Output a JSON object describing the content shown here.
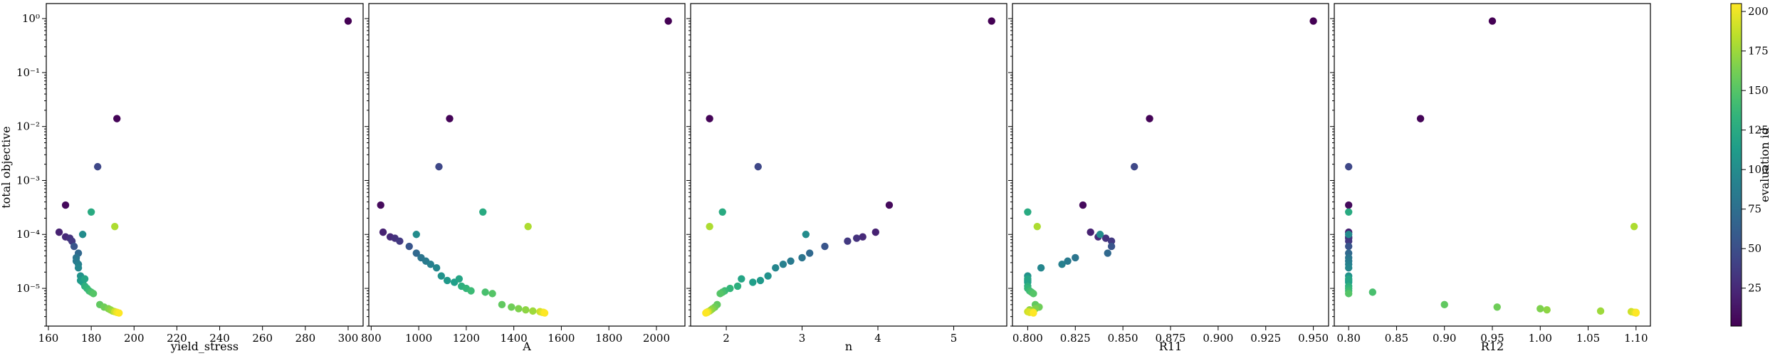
{
  "chart_data": {
    "type": "scatter",
    "shared_y": {
      "label": "total objective",
      "scale": "log",
      "ylim": [
        2e-06,
        1.9
      ],
      "ticks": [
        {
          "value": 1e-05,
          "label": "10⁻⁵"
        },
        {
          "value": 0.0001,
          "label": "10⁻⁴"
        },
        {
          "value": 0.001,
          "label": "10⁻³"
        },
        {
          "value": 0.01,
          "label": "10⁻²"
        },
        {
          "value": 0.1,
          "label": "10⁻¹"
        },
        {
          "value": 1,
          "label": "10⁰"
        }
      ]
    },
    "colorbar": {
      "label": "evaluation id",
      "colormap": "viridis",
      "range": [
        1,
        205
      ],
      "ticks": [
        25,
        50,
        75,
        100,
        125,
        150,
        175,
        200
      ]
    },
    "panels": [
      {
        "xlabel": "yield_stress",
        "xlim": [
          159,
          307
        ],
        "xticks": [
          160,
          180,
          200,
          220,
          240,
          260,
          280,
          300
        ]
      },
      {
        "xlabel": "A",
        "xlim": [
          790,
          2120
        ],
        "xticks": [
          800,
          1000,
          1200,
          1400,
          1600,
          1800,
          2000
        ]
      },
      {
        "xlabel": "n",
        "xlim": [
          1.53,
          5.7
        ],
        "xticks": [
          2,
          3,
          4,
          5
        ]
      },
      {
        "xlabel": "R11",
        "xlim": [
          0.792,
          0.958
        ],
        "xticks": [
          0.8,
          0.825,
          0.85,
          0.875,
          0.9,
          0.925,
          0.95
        ],
        "xtick_labels": [
          "0.800",
          "0.825",
          "0.850",
          "0.875",
          "0.900",
          "0.925",
          "0.950"
        ]
      },
      {
        "xlabel": "R12",
        "xlim": [
          0.785,
          1.115
        ],
        "xticks": [
          0.8,
          0.85,
          0.9,
          0.95,
          1.0,
          1.05,
          1.1
        ],
        "xtick_labels": [
          "0.80",
          "0.85",
          "0.90",
          "0.95",
          "1.00",
          "1.05",
          "1.10"
        ]
      }
    ],
    "points": [
      {
        "id": 1,
        "y": 0.9,
        "x": [
          300,
          2050,
          5.5,
          0.95,
          0.95
        ]
      },
      {
        "id": 3,
        "y": 0.014,
        "x": [
          192,
          1130,
          1.78,
          0.864,
          0.875
        ]
      },
      {
        "id": 6,
        "y": 0.00035,
        "x": [
          168,
          840,
          4.15,
          0.829,
          0.8
        ]
      },
      {
        "id": 20,
        "y": 0.00011,
        "x": [
          165,
          850,
          3.97,
          0.833,
          0.8
        ]
      },
      {
        "id": 25,
        "y": 9e-05,
        "x": [
          168,
          880,
          3.8,
          0.837,
          0.8
        ]
      },
      {
        "id": 30,
        "y": 8.5e-05,
        "x": [
          170,
          900,
          3.72,
          0.841,
          0.8
        ]
      },
      {
        "id": 35,
        "y": 7.5e-05,
        "x": [
          171,
          920,
          3.6,
          0.844,
          0.8
        ]
      },
      {
        "id": 45,
        "y": 0.0018,
        "x": [
          183,
          1085,
          2.42,
          0.856,
          0.8
        ]
      },
      {
        "id": 55,
        "y": 6e-05,
        "x": [
          172,
          960,
          3.3,
          0.844,
          0.8
        ]
      },
      {
        "id": 70,
        "y": 4.5e-05,
        "x": [
          174,
          990,
          3.1,
          0.842,
          0.8
        ]
      },
      {
        "id": 80,
        "y": 3.7e-05,
        "x": [
          173,
          1010,
          3.0,
          0.825,
          0.8
        ]
      },
      {
        "id": 85,
        "y": 3.2e-05,
        "x": [
          173,
          1030,
          2.85,
          0.821,
          0.8
        ]
      },
      {
        "id": 90,
        "y": 2.8e-05,
        "x": [
          174,
          1050,
          2.75,
          0.818,
          0.8
        ]
      },
      {
        "id": 95,
        "y": 2.4e-05,
        "x": [
          174,
          1075,
          2.65,
          0.807,
          0.8
        ]
      },
      {
        "id": 100,
        "y": 0.0001,
        "x": [
          176,
          990,
          3.05,
          0.838,
          0.8
        ]
      },
      {
        "id": 105,
        "y": 1.7e-05,
        "x": [
          175,
          1095,
          2.55,
          0.8,
          0.8
        ]
      },
      {
        "id": 110,
        "y": 1.4e-05,
        "x": [
          175,
          1120,
          2.45,
          0.8,
          0.8
        ]
      },
      {
        "id": 115,
        "y": 1.3e-05,
        "x": [
          176,
          1150,
          2.35,
          0.8,
          0.8
        ]
      },
      {
        "id": 120,
        "y": 1.5e-05,
        "x": [
          177,
          1170,
          2.2,
          0.8,
          0.8
        ]
      },
      {
        "id": 125,
        "y": 0.00026,
        "x": [
          180,
          1270,
          1.95,
          0.8,
          0.8
        ]
      },
      {
        "id": 130,
        "y": 1.1e-05,
        "x": [
          177,
          1180,
          2.15,
          0.8,
          0.8
        ]
      },
      {
        "id": 135,
        "y": 1e-05,
        "x": [
          178,
          1200,
          2.05,
          0.8,
          0.8
        ]
      },
      {
        "id": 140,
        "y": 9e-06,
        "x": [
          179,
          1220,
          1.98,
          0.801,
          0.8
        ]
      },
      {
        "id": 145,
        "y": 8.5e-06,
        "x": [
          180,
          1280,
          1.95,
          0.802,
          0.825
        ]
      },
      {
        "id": 150,
        "y": 8e-06,
        "x": [
          181,
          1310,
          1.92,
          0.803,
          0.8
        ]
      },
      {
        "id": 155,
        "y": 5e-06,
        "x": [
          184,
          1350,
          1.88,
          0.804,
          0.9
        ]
      },
      {
        "id": 160,
        "y": 4.5e-06,
        "x": [
          186,
          1390,
          1.85,
          0.806,
          0.955
        ]
      },
      {
        "id": 165,
        "y": 4.2e-06,
        "x": [
          188,
          1420,
          1.82,
          0.804,
          1.0
        ]
      },
      {
        "id": 170,
        "y": 4e-06,
        "x": [
          189,
          1450,
          1.8,
          0.801,
          1.007
        ]
      },
      {
        "id": 175,
        "y": 3.8e-06,
        "x": [
          190,
          1480,
          1.78,
          0.802,
          1.063
        ]
      },
      {
        "id": 180,
        "y": 0.00014,
        "x": [
          191,
          1460,
          1.78,
          0.805,
          1.098
        ]
      },
      {
        "id": 190,
        "y": 3.7e-06,
        "x": [
          191,
          1510,
          1.76,
          0.8,
          1.095
        ]
      },
      {
        "id": 195,
        "y": 3.6e-06,
        "x": [
          192,
          1520,
          1.75,
          0.801,
          1.098
        ]
      },
      {
        "id": 200,
        "y": 3.6e-06,
        "x": [
          192,
          1525,
          1.74,
          0.803,
          1.1
        ]
      },
      {
        "id": 205,
        "y": 3.5e-06,
        "x": [
          193,
          1530,
          1.73,
          0.803,
          1.1
        ]
      }
    ]
  }
}
